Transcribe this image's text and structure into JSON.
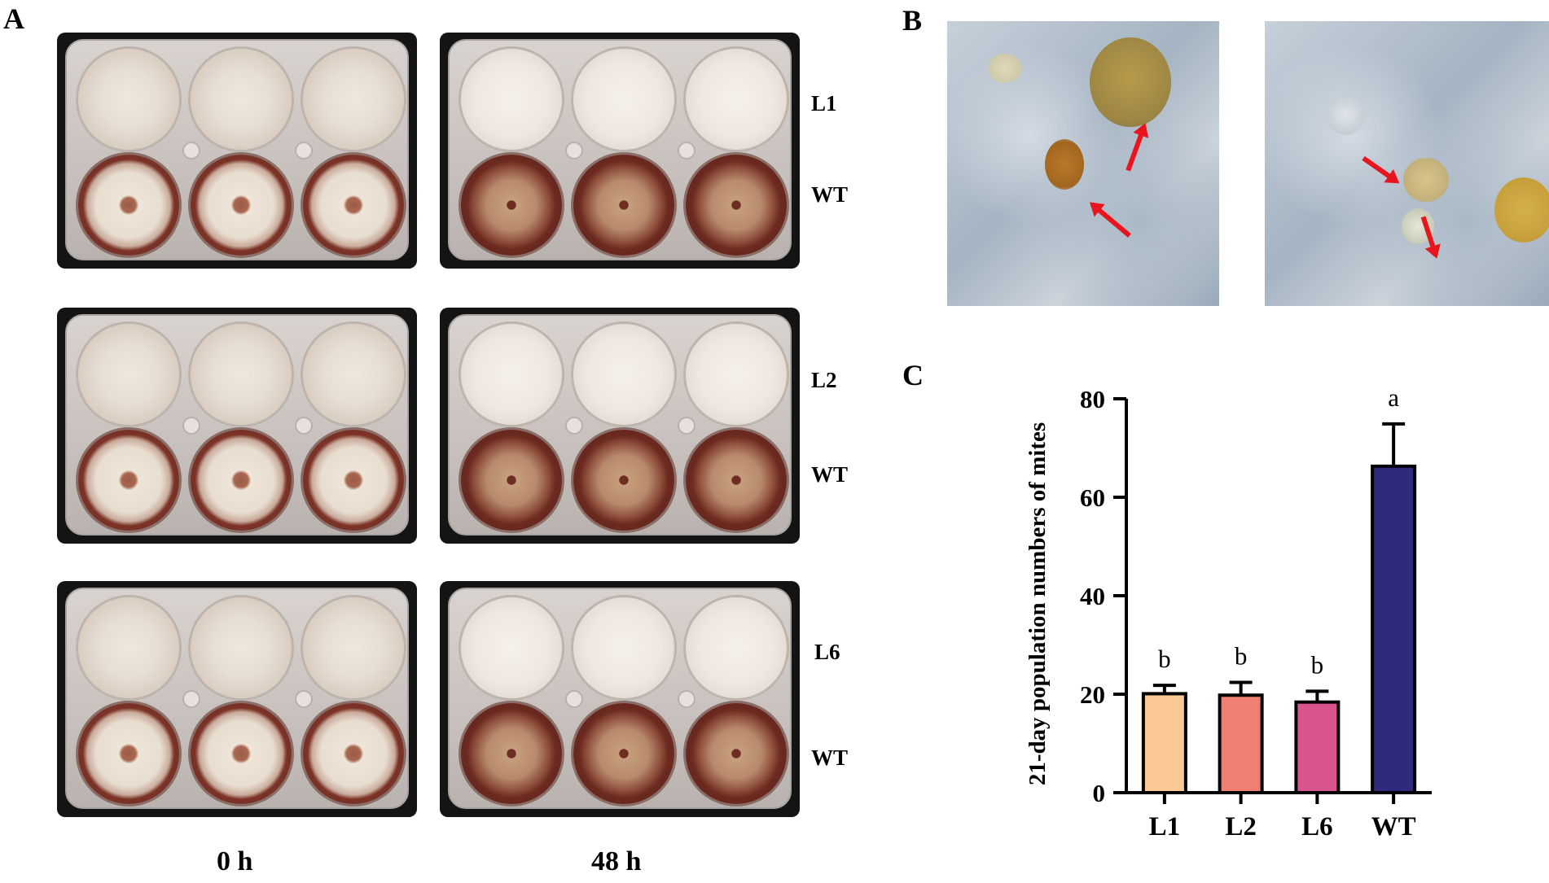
{
  "panels": {
    "A": {
      "letter": "A",
      "row_labels": [
        "L1",
        "WT",
        "L2",
        "WT",
        "L6",
        "WT"
      ],
      "time_labels": [
        "0 h",
        "48 h"
      ]
    },
    "B": {
      "letter": "B"
    },
    "C": {
      "letter": "C"
    }
  },
  "colors": {
    "L1": "#f9c895",
    "L2": "#ef7f73",
    "L6": "#d9538f",
    "WT": "#2e2a7e",
    "arrow": "#e8141e"
  },
  "chart_data": {
    "type": "bar",
    "categories": [
      "L1",
      "L2",
      "L6",
      "WT"
    ],
    "values": [
      20.1,
      19.8,
      18.4,
      66.3
    ],
    "errors": [
      1.7,
      2.6,
      2.2,
      8.6
    ],
    "significance": [
      "b",
      "b",
      "b",
      "a"
    ],
    "ylabel": "21-day population numbers of mites",
    "ylim": [
      0,
      80
    ],
    "yticks": [
      "0",
      "20",
      "40",
      "60",
      "80"
    ],
    "colors": [
      "#f9c895",
      "#ef7f73",
      "#d9538f",
      "#2e2a7e"
    ]
  }
}
